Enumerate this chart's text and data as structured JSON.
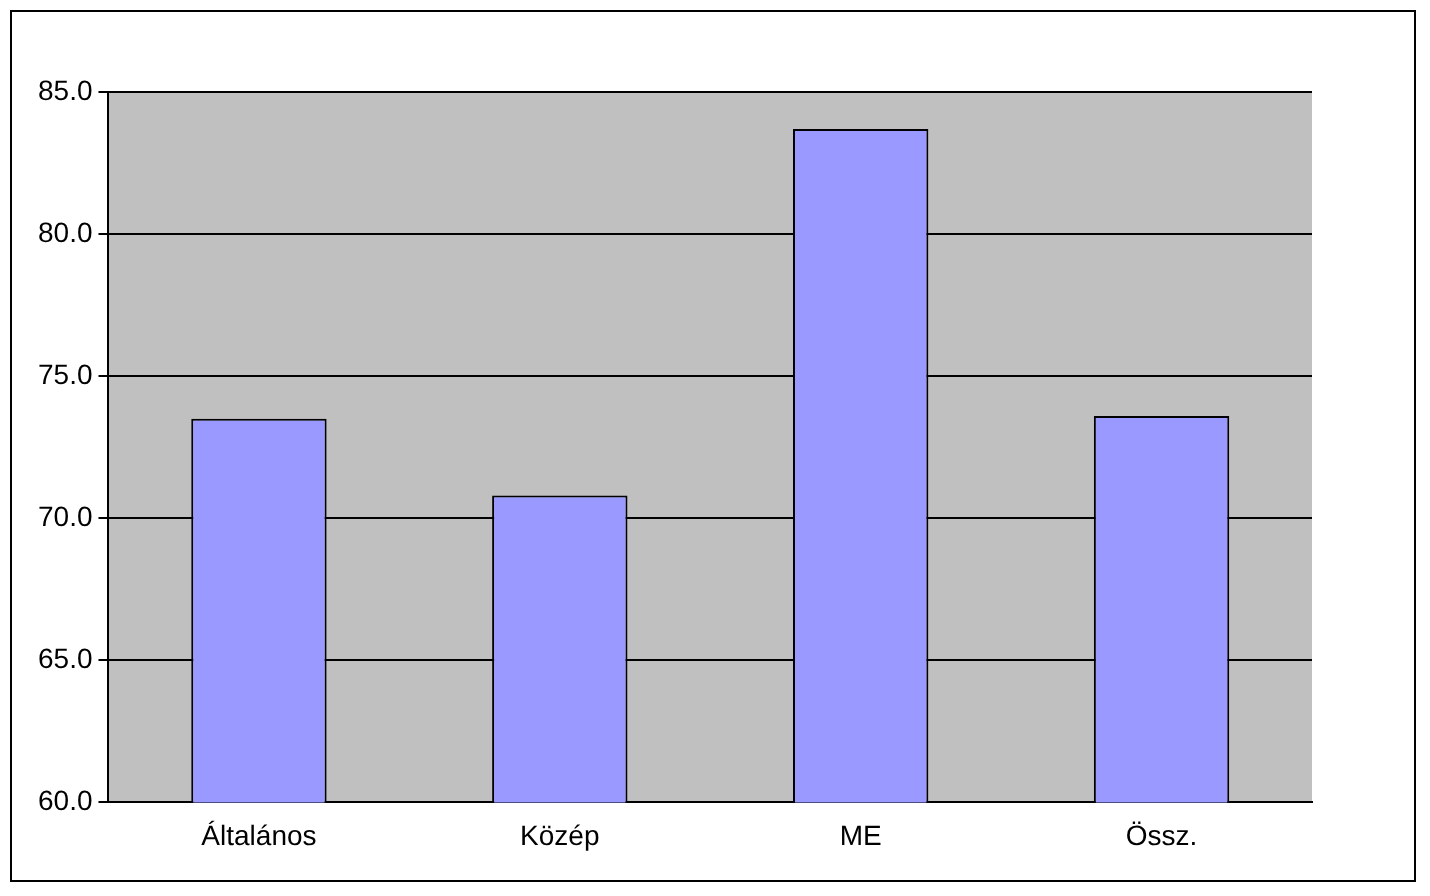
{
  "chart_data": {
    "type": "bar",
    "categories": [
      "Általános",
      "Közép",
      "ME",
      "Össz."
    ],
    "values": [
      73.5,
      70.8,
      83.7,
      73.6
    ],
    "color": "#9999ff",
    "ylim": [
      60,
      85
    ],
    "yticks": [
      {
        "value": 60,
        "label": "60.0"
      },
      {
        "value": 65,
        "label": "65.0"
      },
      {
        "value": 70,
        "label": "70.0"
      },
      {
        "value": 75,
        "label": "75.0"
      },
      {
        "value": 80,
        "label": "80.0"
      },
      {
        "value": 85,
        "label": "85.0"
      }
    ],
    "grid": "y",
    "legend": false
  }
}
